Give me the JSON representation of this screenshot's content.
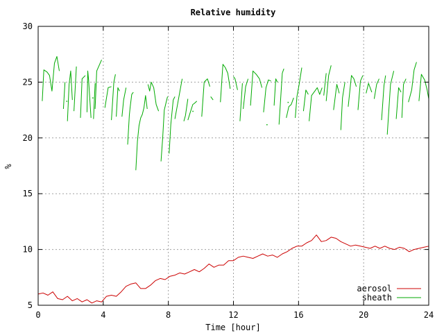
{
  "chart_data": {
    "type": "line",
    "title": "Relative humidity",
    "xlabel": "Time [hour]",
    "ylabel": "%",
    "xlim": [
      0,
      24
    ],
    "ylim": [
      5,
      30
    ],
    "xticks": [
      0,
      4,
      8,
      12,
      16,
      20,
      24
    ],
    "yticks": [
      5,
      10,
      15,
      20,
      25,
      30
    ],
    "legend_position": "bottom-right",
    "series": [
      {
        "name": "aerosol",
        "color": "#cc0000",
        "points": [
          [
            0.0,
            6.0
          ],
          [
            0.3,
            6.1
          ],
          [
            0.6,
            5.9
          ],
          [
            0.9,
            6.2
          ],
          [
            1.2,
            5.6
          ],
          [
            1.5,
            5.5
          ],
          [
            1.8,
            5.8
          ],
          [
            2.1,
            5.4
          ],
          [
            2.4,
            5.6
          ],
          [
            2.7,
            5.3
          ],
          [
            3.0,
            5.5
          ],
          [
            3.3,
            5.2
          ],
          [
            3.6,
            5.4
          ],
          [
            3.9,
            5.3
          ],
          [
            4.2,
            5.8
          ],
          [
            4.5,
            5.9
          ],
          [
            4.8,
            5.8
          ],
          [
            5.1,
            6.2
          ],
          [
            5.4,
            6.7
          ],
          [
            5.7,
            6.9
          ],
          [
            6.0,
            7.0
          ],
          [
            6.3,
            6.5
          ],
          [
            6.6,
            6.5
          ],
          [
            6.9,
            6.8
          ],
          [
            7.2,
            7.2
          ],
          [
            7.5,
            7.4
          ],
          [
            7.8,
            7.3
          ],
          [
            8.1,
            7.6
          ],
          [
            8.4,
            7.7
          ],
          [
            8.7,
            7.9
          ],
          [
            9.0,
            7.8
          ],
          [
            9.3,
            8.0
          ],
          [
            9.6,
            8.2
          ],
          [
            9.9,
            8.0
          ],
          [
            10.2,
            8.3
          ],
          [
            10.5,
            8.7
          ],
          [
            10.8,
            8.4
          ],
          [
            11.1,
            8.6
          ],
          [
            11.4,
            8.6
          ],
          [
            11.7,
            9.0
          ],
          [
            12.0,
            9.0
          ],
          [
            12.3,
            9.3
          ],
          [
            12.6,
            9.4
          ],
          [
            12.9,
            9.3
          ],
          [
            13.2,
            9.2
          ],
          [
            13.5,
            9.4
          ],
          [
            13.8,
            9.6
          ],
          [
            14.1,
            9.4
          ],
          [
            14.4,
            9.5
          ],
          [
            14.7,
            9.3
          ],
          [
            15.0,
            9.6
          ],
          [
            15.3,
            9.8
          ],
          [
            15.6,
            10.1
          ],
          [
            15.9,
            10.3
          ],
          [
            16.2,
            10.3
          ],
          [
            16.5,
            10.6
          ],
          [
            16.8,
            10.8
          ],
          [
            17.1,
            11.3
          ],
          [
            17.4,
            10.7
          ],
          [
            17.7,
            10.8
          ],
          [
            18.0,
            11.1
          ],
          [
            18.3,
            11.0
          ],
          [
            18.6,
            10.7
          ],
          [
            18.9,
            10.5
          ],
          [
            19.2,
            10.3
          ],
          [
            19.5,
            10.4
          ],
          [
            19.8,
            10.3
          ],
          [
            20.1,
            10.2
          ],
          [
            20.4,
            10.1
          ],
          [
            20.7,
            10.3
          ],
          [
            21.0,
            10.1
          ],
          [
            21.3,
            10.3
          ],
          [
            21.6,
            10.1
          ],
          [
            21.9,
            10.0
          ],
          [
            22.2,
            10.2
          ],
          [
            22.5,
            10.1
          ],
          [
            22.8,
            9.8
          ],
          [
            23.1,
            10.0
          ],
          [
            23.4,
            10.1
          ],
          [
            23.7,
            10.2
          ],
          [
            24.0,
            10.3
          ]
        ]
      },
      {
        "name": "sheath",
        "color": "#00aa00",
        "segments": [
          [
            [
              0.25,
              23.3
            ],
            [
              0.35,
              26.1
            ],
            [
              0.55,
              25.9
            ],
            [
              0.7,
              25.6
            ],
            [
              0.85,
              24.2
            ],
            [
              1.0,
              26.7
            ],
            [
              1.15,
              27.3
            ],
            [
              1.3,
              26.0
            ]
          ],
          [
            [
              1.55,
              22.6
            ],
            [
              1.65,
              25.0
            ]
          ],
          [
            [
              1.8,
              21.5
            ],
            [
              1.9,
              24.8
            ],
            [
              2.0,
              26.0
            ],
            [
              2.1,
              23.4
            ]
          ],
          [
            [
              2.2,
              22.4
            ],
            [
              2.35,
              26.4
            ]
          ],
          [
            [
              2.6,
              21.8
            ],
            [
              2.7,
              25.3
            ],
            [
              2.9,
              25.6
            ]
          ],
          [
            [
              3.0,
              22.3
            ],
            [
              3.05,
              26.0
            ],
            [
              3.1,
              25.2
            ],
            [
              3.25,
              21.8
            ]
          ],
          [
            [
              3.4,
              21.7
            ],
            [
              3.5,
              24.9
            ]
          ],
          [
            [
              3.5,
              22.6
            ],
            [
              3.6,
              26.0
            ],
            [
              3.9,
              27.0
            ]
          ],
          [
            [
              4.1,
              22.7
            ],
            [
              4.3,
              24.5
            ],
            [
              4.5,
              24.6
            ]
          ],
          [
            [
              4.5,
              21.6
            ],
            [
              4.65,
              25.0
            ],
            [
              4.75,
              25.7
            ]
          ],
          [
            [
              4.8,
              21.9
            ],
            [
              4.9,
              24.5
            ],
            [
              5.0,
              24.2
            ]
          ],
          [
            [
              5.15,
              21.9
            ],
            [
              5.25,
              23.4
            ],
            [
              5.4,
              24.5
            ]
          ],
          [
            [
              5.5,
              19.4
            ],
            [
              5.6,
              22.0
            ],
            [
              5.65,
              22.7
            ],
            [
              5.75,
              23.9
            ],
            [
              5.85,
              24.1
            ]
          ],
          [
            [
              6.0,
              17.1
            ],
            [
              6.1,
              19.7
            ],
            [
              6.2,
              21.1
            ],
            [
              6.3,
              21.8
            ],
            [
              6.4,
              22.1
            ],
            [
              6.5,
              22.7
            ],
            [
              6.6,
              23.8
            ],
            [
              6.7,
              22.6
            ]
          ],
          [
            [
              6.75,
              24.8
            ],
            [
              6.85,
              24.2
            ],
            [
              6.95,
              25.0
            ],
            [
              7.1,
              24.5
            ],
            [
              7.25,
              23.0
            ],
            [
              7.4,
              22.4
            ]
          ],
          [
            [
              7.55,
              17.9
            ],
            [
              7.65,
              20.0
            ],
            [
              7.75,
              22.5
            ],
            [
              7.85,
              23.1
            ],
            [
              7.95,
              23.7
            ]
          ],
          [
            [
              8.05,
              18.6
            ],
            [
              8.15,
              21.2
            ],
            [
              8.3,
              23.4
            ],
            [
              8.4,
              23.7
            ]
          ],
          [
            [
              8.4,
              21.7
            ],
            [
              8.55,
              22.9
            ],
            [
              8.7,
              24.1
            ],
            [
              8.85,
              25.3
            ]
          ],
          [
            [
              8.95,
              21.5
            ],
            [
              9.05,
              22.0
            ],
            [
              9.2,
              23.5
            ]
          ],
          [
            [
              9.2,
              21.6
            ],
            [
              9.35,
              22.3
            ],
            [
              9.5,
              23.0
            ],
            [
              9.6,
              23.1
            ],
            [
              9.75,
              23.3
            ]
          ],
          [
            [
              10.05,
              21.9
            ],
            [
              10.2,
              25.0
            ],
            [
              10.4,
              25.3
            ],
            [
              10.55,
              24.6
            ]
          ],
          [
            [
              10.6,
              23.7
            ],
            [
              10.75,
              23.4
            ]
          ],
          [
            [
              11.2,
              23.2
            ],
            [
              11.35,
              26.6
            ],
            [
              11.5,
              26.3
            ],
            [
              11.65,
              25.8
            ],
            [
              11.8,
              24.4
            ]
          ],
          [
            [
              12.0,
              25.5
            ],
            [
              12.1,
              25.3
            ],
            [
              12.25,
              24.3
            ]
          ],
          [
            [
              12.4,
              21.5
            ],
            [
              12.55,
              24.9
            ]
          ],
          [
            [
              12.6,
              22.6
            ],
            [
              12.75,
              24.6
            ],
            [
              12.9,
              25.3
            ]
          ],
          [
            [
              13.05,
              22.9
            ],
            [
              13.2,
              26.0
            ],
            [
              13.4,
              25.7
            ],
            [
              13.6,
              25.3
            ],
            [
              13.75,
              24.5
            ]
          ],
          [
            [
              13.85,
              22.3
            ],
            [
              14.0,
              24.5
            ],
            [
              14.15,
              25.2
            ],
            [
              14.3,
              25.1
            ]
          ],
          [
            [
              14.5,
              22.9
            ],
            [
              14.6,
              25.3
            ],
            [
              14.7,
              25.0
            ]
          ],
          [
            [
              14.8,
              21.2
            ],
            [
              15.0,
              25.8
            ],
            [
              15.1,
              26.2
            ]
          ],
          [
            [
              15.25,
              21.8
            ],
            [
              15.4,
              22.8
            ],
            [
              15.55,
              23.0
            ],
            [
              15.7,
              23.6
            ]
          ],
          [
            [
              15.8,
              21.8
            ],
            [
              15.9,
              23.7
            ],
            [
              16.05,
              24.9
            ],
            [
              16.2,
              26.3
            ]
          ],
          [
            [
              16.3,
              22.4
            ],
            [
              16.45,
              24.3
            ],
            [
              16.6,
              23.9
            ]
          ],
          [
            [
              16.65,
              21.5
            ],
            [
              16.8,
              23.8
            ],
            [
              17.0,
              24.2
            ],
            [
              17.15,
              24.5
            ],
            [
              17.3,
              23.9
            ],
            [
              17.45,
              24.5
            ]
          ],
          [
            [
              17.55,
              23.8
            ],
            [
              17.7,
              25.8
            ]
          ],
          [
            [
              17.7,
              23.3
            ],
            [
              17.85,
              25.6
            ],
            [
              18.0,
              26.5
            ]
          ],
          [
            [
              18.15,
              22.5
            ],
            [
              18.35,
              24.8
            ],
            [
              18.5,
              24.0
            ]
          ],
          [
            [
              18.6,
              20.7
            ],
            [
              18.7,
              23.6
            ],
            [
              18.85,
              25.0
            ]
          ],
          [
            [
              19.05,
              22.8
            ],
            [
              19.25,
              25.6
            ],
            [
              19.4,
              25.3
            ],
            [
              19.55,
              24.6
            ]
          ],
          [
            [
              19.65,
              22.5
            ],
            [
              19.8,
              25.1
            ],
            [
              19.95,
              25.6
            ]
          ],
          [
            [
              20.15,
              24.0
            ],
            [
              20.3,
              24.9
            ],
            [
              20.5,
              24.1
            ]
          ],
          [
            [
              20.65,
              23.5
            ],
            [
              20.8,
              24.8
            ],
            [
              20.95,
              25.3
            ]
          ],
          [
            [
              21.1,
              21.6
            ],
            [
              21.25,
              24.7
            ],
            [
              21.35,
              25.6
            ]
          ],
          [
            [
              21.45,
              20.3
            ],
            [
              21.65,
              24.8
            ],
            [
              21.85,
              26.0
            ]
          ],
          [
            [
              22.0,
              21.7
            ],
            [
              22.15,
              24.5
            ],
            [
              22.3,
              24.1
            ]
          ],
          [
            [
              22.35,
              21.8
            ],
            [
              22.45,
              24.8
            ],
            [
              22.6,
              25.3
            ]
          ],
          [
            [
              22.75,
              23.2
            ],
            [
              22.95,
              24.3
            ],
            [
              23.1,
              26.1
            ],
            [
              23.25,
              26.8
            ]
          ],
          [
            [
              23.4,
              23.3
            ],
            [
              23.55,
              25.7
            ],
            [
              23.75,
              25.2
            ],
            [
              23.9,
              24.3
            ],
            [
              24.0,
              23.5
            ]
          ]
        ],
        "dots": [
          [
            1.75,
            23.3
          ],
          [
            3.35,
            23.6
          ],
          [
            9.5,
            22.4
          ],
          [
            14.05,
            21.2
          ],
          [
            15.35,
            23.2
          ]
        ]
      }
    ]
  }
}
